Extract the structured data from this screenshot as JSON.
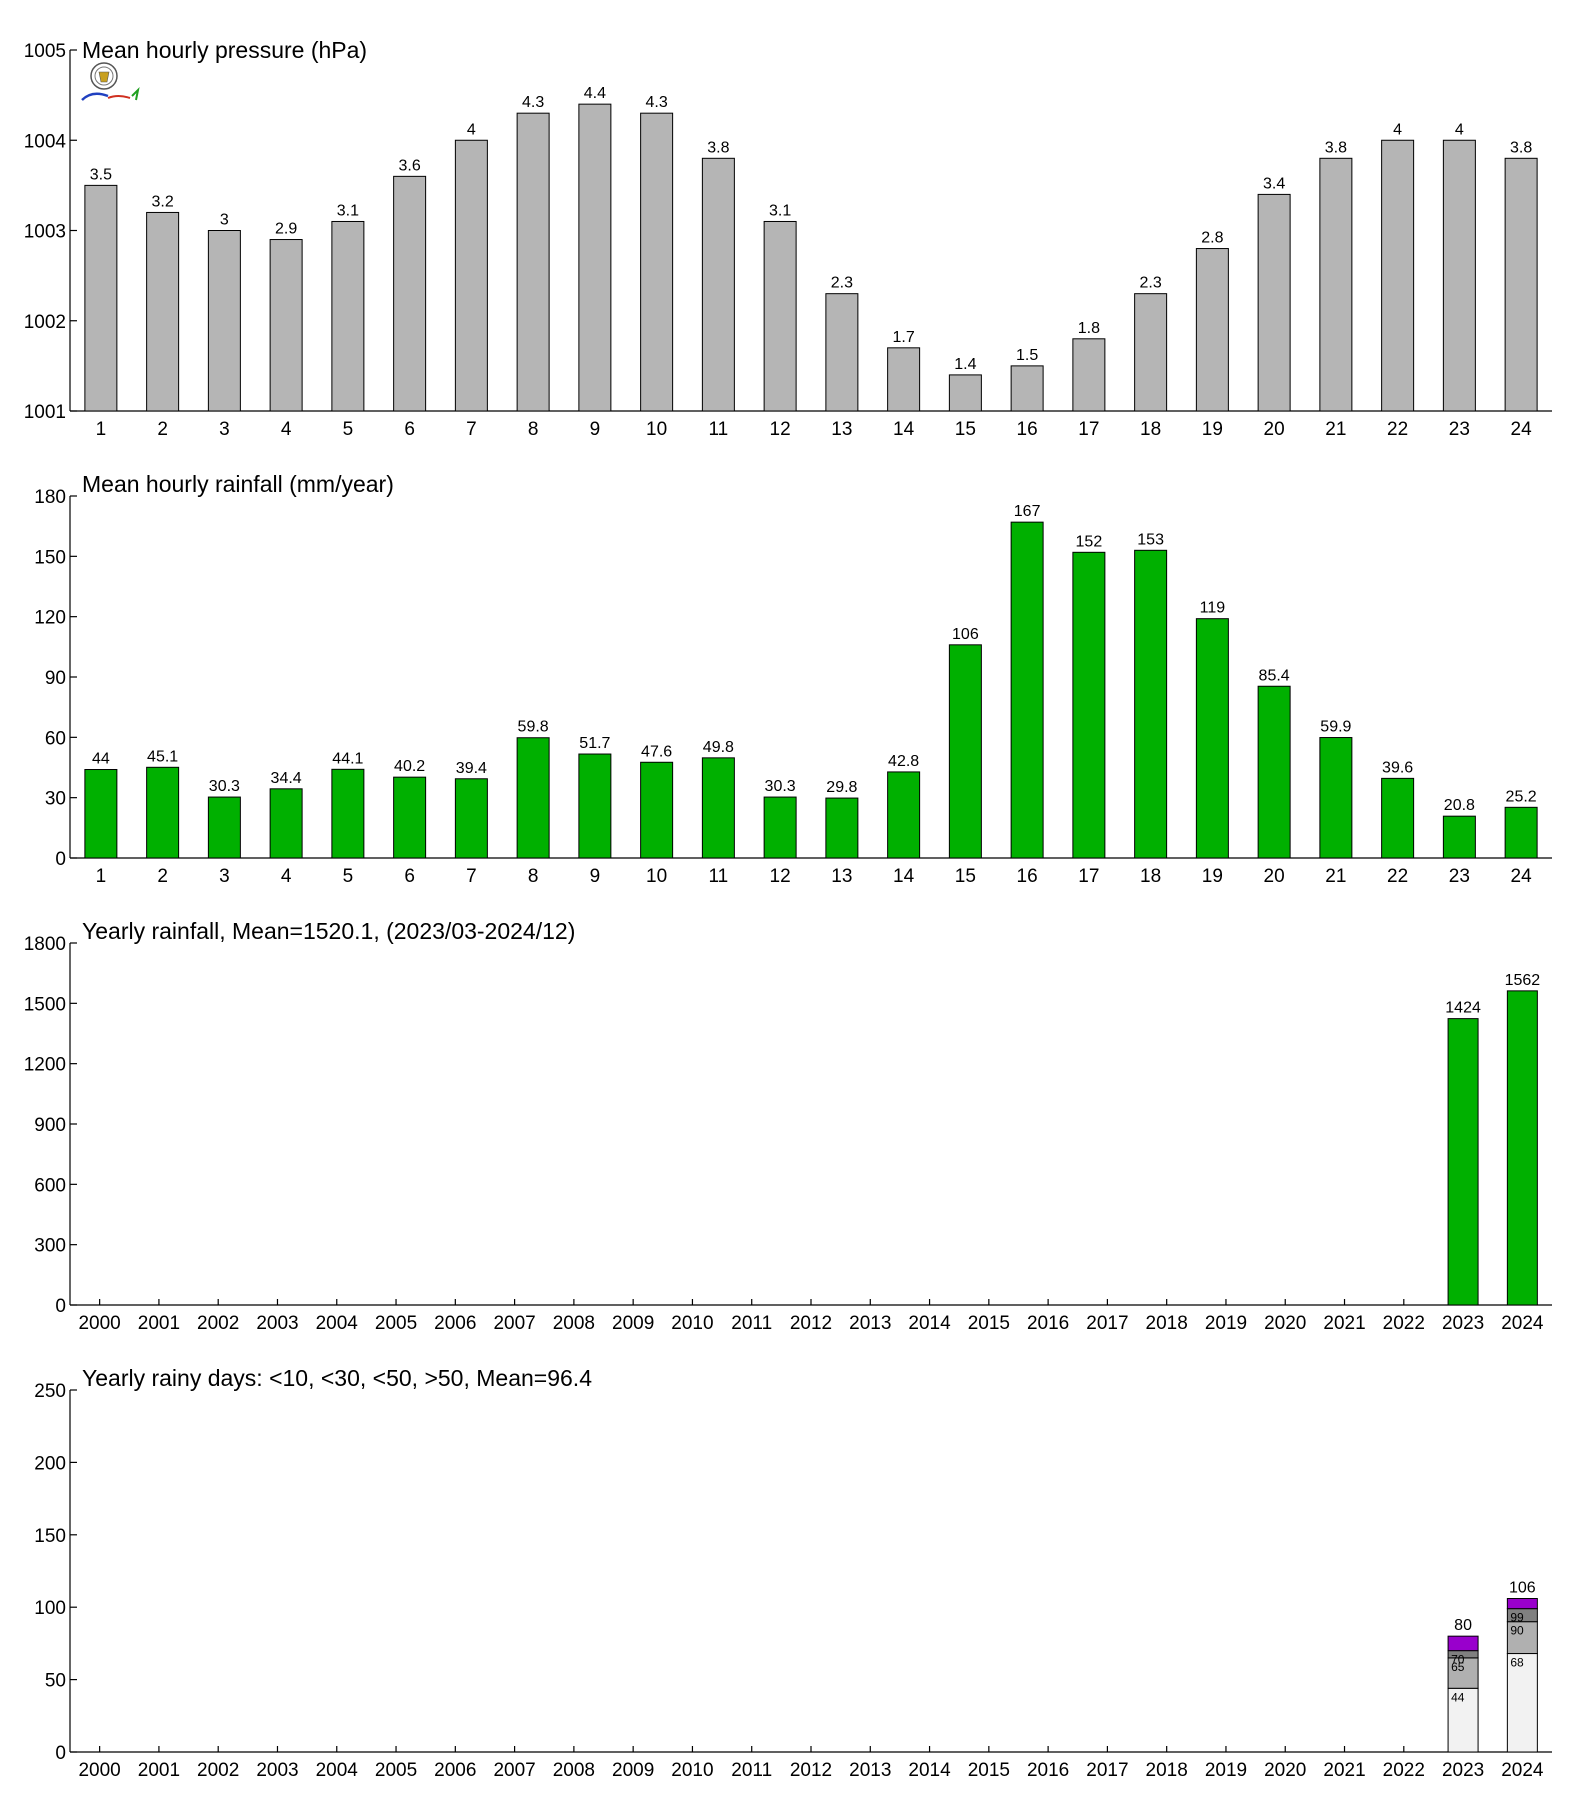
{
  "colors": {
    "pressure_bar": "#b5b5b5",
    "rain_bar": "#00b000",
    "days_seg1": "#f2f2f2",
    "days_seg2": "#b0b0b0",
    "days_seg3": "#808080",
    "days_seg4": "#9900cc"
  },
  "chart_data": [
    {
      "type": "bar",
      "title": "Mean hourly pressure (hPa)",
      "categories": [
        "1",
        "2",
        "3",
        "4",
        "5",
        "6",
        "7",
        "8",
        "9",
        "10",
        "11",
        "12",
        "13",
        "14",
        "15",
        "16",
        "17",
        "18",
        "19",
        "20",
        "21",
        "22",
        "23",
        "24"
      ],
      "values": [
        1003.5,
        1003.2,
        1003.0,
        1002.9,
        1003.1,
        1003.6,
        1004.0,
        1004.3,
        1004.4,
        1004.3,
        1003.8,
        1003.1,
        1002.3,
        1001.7,
        1001.4,
        1001.5,
        1001.8,
        1002.3,
        1002.8,
        1003.4,
        1003.8,
        1004.0,
        1004.0,
        1003.8
      ],
      "data_labels": [
        "3.5",
        "3.2",
        "3",
        "2.9",
        "3.1",
        "3.6",
        "4",
        "4.3",
        "4.4",
        "4.3",
        "3.8",
        "3.1",
        "2.3",
        "1.7",
        "1.4",
        "1.5",
        "1.8",
        "2.3",
        "2.8",
        "3.4",
        "3.8",
        "4",
        "4",
        "3.8"
      ],
      "ylim": [
        1001,
        1005
      ],
      "yticks": [
        1001,
        1002,
        1003,
        1004,
        1005
      ],
      "ytick_labels": [
        "1001",
        "1002",
        "1003",
        "1004",
        "1005"
      ],
      "color": "#b5b5b5",
      "has_logo": true
    },
    {
      "type": "bar",
      "title": "Mean hourly rainfall (mm/year)",
      "categories": [
        "1",
        "2",
        "3",
        "4",
        "5",
        "6",
        "7",
        "8",
        "9",
        "10",
        "11",
        "12",
        "13",
        "14",
        "15",
        "16",
        "17",
        "18",
        "19",
        "20",
        "21",
        "22",
        "23",
        "24"
      ],
      "values": [
        44,
        45.1,
        30.3,
        34.4,
        44.1,
        40.2,
        39.4,
        59.8,
        51.7,
        47.6,
        49.8,
        30.3,
        29.8,
        42.8,
        106,
        167,
        152,
        153,
        119,
        85.4,
        59.9,
        39.6,
        20.8,
        25.2
      ],
      "data_labels": [
        "44",
        "45.1",
        "30.3",
        "34.4",
        "44.1",
        "40.2",
        "39.4",
        "59.8",
        "51.7",
        "47.6",
        "49.8",
        "30.3",
        "29.8",
        "42.8",
        "106",
        "167",
        "152",
        "153",
        "119",
        "85.4",
        "59.9",
        "39.6",
        "20.8",
        "25.2"
      ],
      "ylim": [
        0,
        180
      ],
      "yticks": [
        0,
        30,
        60,
        90,
        120,
        150,
        180
      ],
      "ytick_labels": [
        "0",
        "30",
        "60",
        "90",
        "120",
        "150",
        "180"
      ],
      "color": "#00b000"
    },
    {
      "type": "bar",
      "title": "Yearly rainfall, Mean=1520.1, (2023/03-2024/12)",
      "categories": [
        "2000",
        "2001",
        "2002",
        "2003",
        "2004",
        "2005",
        "2006",
        "2007",
        "2008",
        "2009",
        "2010",
        "2011",
        "2012",
        "2013",
        "2014",
        "2015",
        "2016",
        "2017",
        "2018",
        "2019",
        "2020",
        "2021",
        "2022",
        "2023",
        "2024"
      ],
      "values": [
        null,
        null,
        null,
        null,
        null,
        null,
        null,
        null,
        null,
        null,
        null,
        null,
        null,
        null,
        null,
        null,
        null,
        null,
        null,
        null,
        null,
        null,
        null,
        1424,
        1562
      ],
      "data_labels": [
        "",
        "",
        "",
        "",
        "",
        "",
        "",
        "",
        "",
        "",
        "",
        "",
        "",
        "",
        "",
        "",
        "",
        "",
        "",
        "",
        "",
        "",
        "",
        "1424",
        "1562"
      ],
      "ylim": [
        0,
        1800
      ],
      "yticks": [
        0,
        300,
        600,
        900,
        1200,
        1500,
        1800
      ],
      "ytick_labels": [
        "0",
        "300",
        "600",
        "900",
        "1200",
        "1500",
        "1800"
      ],
      "color": "#00b000"
    },
    {
      "type": "bar",
      "stacked": true,
      "title": "Yearly rainy days: <10, <30, <50, >50, Mean=96.4",
      "categories": [
        "2000",
        "2001",
        "2002",
        "2003",
        "2004",
        "2005",
        "2006",
        "2007",
        "2008",
        "2009",
        "2010",
        "2011",
        "2012",
        "2013",
        "2014",
        "2015",
        "2016",
        "2017",
        "2018",
        "2019",
        "2020",
        "2021",
        "2022",
        "2023",
        "2024"
      ],
      "cumulative": [
        null,
        null,
        null,
        null,
        null,
        null,
        null,
        null,
        null,
        null,
        null,
        null,
        null,
        null,
        null,
        null,
        null,
        null,
        null,
        null,
        null,
        null,
        null,
        [
          44,
          65,
          70,
          80
        ],
        [
          68,
          90,
          99,
          106
        ]
      ],
      "segment_labels": [
        null,
        null,
        null,
        null,
        null,
        null,
        null,
        null,
        null,
        null,
        null,
        null,
        null,
        null,
        null,
        null,
        null,
        null,
        null,
        null,
        null,
        null,
        null,
        [
          "44",
          "65",
          "70",
          ""
        ],
        [
          "68",
          "90",
          "99",
          ""
        ]
      ],
      "total_labels": [
        "",
        "",
        "",
        "",
        "",
        "",
        "",
        "",
        "",
        "",
        "",
        "",
        "",
        "",
        "",
        "",
        "",
        "",
        "",
        "",
        "",
        "",
        "",
        "80",
        "106"
      ],
      "segment_colors": [
        "#f2f2f2",
        "#b0b0b0",
        "#808080",
        "#9900cc"
      ],
      "ylim": [
        0,
        250
      ],
      "yticks": [
        0,
        50,
        100,
        150,
        200,
        250
      ],
      "ytick_labels": [
        "0",
        "50",
        "100",
        "150",
        "200",
        "250"
      ]
    }
  ]
}
